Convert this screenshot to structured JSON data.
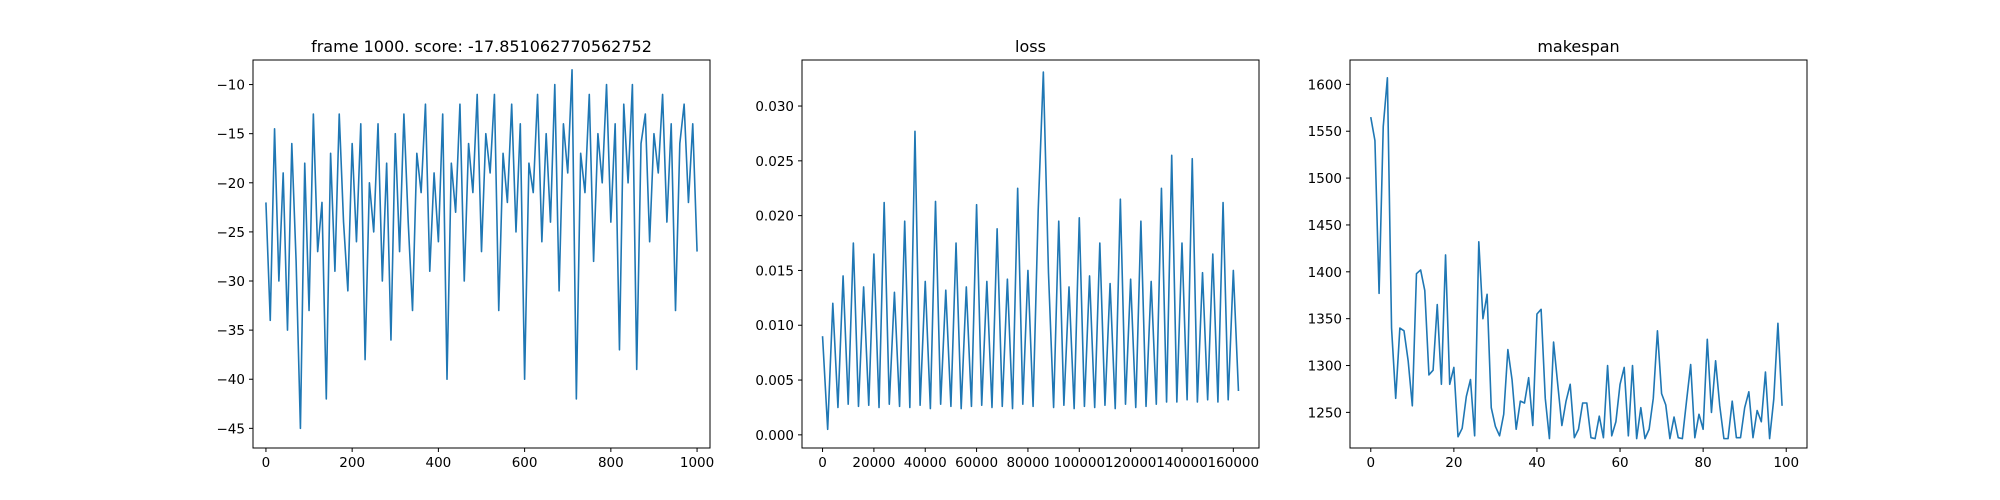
{
  "chart_data": [
    {
      "type": "line",
      "title": "frame 1000. score: -17.851062770562752",
      "xlabel": "",
      "ylabel": "",
      "xlim": [
        -30,
        1030
      ],
      "ylim": [
        -47,
        -7.5
      ],
      "xticks": [
        0,
        200,
        400,
        600,
        800,
        1000
      ],
      "xtick_labels": [
        "0",
        "200",
        "400",
        "600",
        "800",
        "1000"
      ],
      "yticks": [
        -45,
        -40,
        -35,
        -30,
        -25,
        -20,
        -15,
        -10
      ],
      "ytick_labels": [
        "−45",
        "−40",
        "−35",
        "−30",
        "−25",
        "−20",
        "−15",
        "−10"
      ],
      "color": "#1f77b4",
      "grid": false,
      "series": [
        {
          "x": [
            0,
            10,
            20,
            30,
            40,
            50,
            60,
            70,
            80,
            90,
            100,
            110,
            120,
            130,
            140,
            150,
            160,
            170,
            180,
            190,
            200,
            210,
            220,
            230,
            240,
            250,
            260,
            270,
            280,
            290,
            300,
            310,
            320,
            330,
            340,
            350,
            360,
            370,
            380,
            390,
            400,
            410,
            420,
            430,
            440,
            450,
            460,
            470,
            480,
            490,
            500,
            510,
            520,
            530,
            540,
            550,
            560,
            570,
            580,
            590,
            600,
            610,
            620,
            630,
            640,
            650,
            660,
            670,
            680,
            690,
            700,
            710,
            720,
            730,
            740,
            750,
            760,
            770,
            780,
            790,
            800,
            810,
            820,
            830,
            840,
            850,
            860,
            870,
            880,
            890,
            900,
            910,
            920,
            930,
            940,
            950,
            960,
            970,
            980,
            990,
            1000
          ],
          "values": [
            -22,
            -34,
            -14.5,
            -30,
            -19,
            -35,
            -16,
            -28,
            -45,
            -18,
            -33,
            -13,
            -27,
            -22,
            -42,
            -17,
            -29,
            -13,
            -24,
            -31,
            -16,
            -26,
            -14,
            -38,
            -20,
            -25,
            -14,
            -30,
            -18,
            -36,
            -15,
            -27,
            -13,
            -24,
            -33,
            -17,
            -21,
            -12,
            -29,
            -19,
            -26,
            -13,
            -40,
            -18,
            -23,
            -12,
            -30,
            -16,
            -21,
            -11,
            -27,
            -15,
            -19,
            -11,
            -33,
            -17,
            -22,
            -12,
            -25,
            -14,
            -40,
            -18,
            -21,
            -11,
            -26,
            -15,
            -24,
            -10,
            -31,
            -14,
            -19,
            -8.5,
            -42,
            -17,
            -21,
            -11,
            -28,
            -15,
            -20,
            -10,
            -24,
            -14,
            -37,
            -12,
            -20,
            -10,
            -39,
            -16,
            -13,
            -26,
            -15,
            -19,
            -11,
            -24,
            -14,
            -33,
            -16,
            -12,
            -22,
            -14,
            -27
          ]
        }
      ]
    },
    {
      "type": "line",
      "title": "loss",
      "xlabel": "",
      "ylabel": "",
      "xlim": [
        -8000,
        170000
      ],
      "ylim": [
        -0.0012,
        0.0342
      ],
      "xticks": [
        0,
        20000,
        40000,
        60000,
        80000,
        100000,
        120000,
        140000,
        160000
      ],
      "xtick_labels": [
        "0",
        "20000",
        "40000",
        "60000",
        "80000",
        "100000",
        "120000",
        "140000",
        "160000"
      ],
      "yticks": [
        0.0,
        0.005,
        0.01,
        0.015,
        0.02,
        0.025,
        0.03
      ],
      "ytick_labels": [
        "0.000",
        "0.005",
        "0.010",
        "0.015",
        "0.020",
        "0.025",
        "0.030"
      ],
      "color": "#1f77b4",
      "grid": false,
      "series": [
        {
          "x": [
            0,
            2000,
            4000,
            6000,
            8000,
            10000,
            12000,
            14000,
            16000,
            18000,
            20000,
            22000,
            24000,
            26000,
            28000,
            30000,
            32000,
            34000,
            36000,
            38000,
            40000,
            42000,
            44000,
            46000,
            48000,
            50000,
            52000,
            54000,
            56000,
            58000,
            60000,
            62000,
            64000,
            66000,
            68000,
            70000,
            72000,
            74000,
            76000,
            78000,
            80000,
            82000,
            84000,
            86000,
            88000,
            90000,
            92000,
            94000,
            96000,
            98000,
            100000,
            102000,
            104000,
            106000,
            108000,
            110000,
            112000,
            114000,
            116000,
            118000,
            120000,
            122000,
            124000,
            126000,
            128000,
            130000,
            132000,
            134000,
            136000,
            138000,
            140000,
            142000,
            144000,
            146000,
            148000,
            150000,
            152000,
            154000,
            156000,
            158000,
            160000,
            162000
          ],
          "values": [
            0.009,
            0.0005,
            0.012,
            0.0025,
            0.0145,
            0.0028,
            0.0175,
            0.0026,
            0.0135,
            0.0027,
            0.0165,
            0.0025,
            0.0212,
            0.0028,
            0.013,
            0.0026,
            0.0195,
            0.0025,
            0.0277,
            0.0027,
            0.014,
            0.0024,
            0.0213,
            0.0028,
            0.0132,
            0.0026,
            0.0175,
            0.0024,
            0.0135,
            0.0026,
            0.021,
            0.0027,
            0.014,
            0.0025,
            0.0188,
            0.0026,
            0.0142,
            0.0024,
            0.0225,
            0.0028,
            0.015,
            0.0026,
            0.0205,
            0.0331,
            0.0148,
            0.0025,
            0.0195,
            0.0027,
            0.0135,
            0.0024,
            0.0198,
            0.0026,
            0.0145,
            0.0025,
            0.0175,
            0.0027,
            0.0138,
            0.0024,
            0.0215,
            0.0028,
            0.0142,
            0.0025,
            0.0195,
            0.0026,
            0.014,
            0.0028,
            0.0225,
            0.003,
            0.0255,
            0.003,
            0.0175,
            0.0032,
            0.0252,
            0.003,
            0.0148,
            0.0032,
            0.0165,
            0.003,
            0.0212,
            0.0032,
            0.015,
            0.004
          ]
        }
      ]
    },
    {
      "type": "line",
      "title": "makespan",
      "xlabel": "",
      "ylabel": "",
      "xlim": [
        -5,
        105
      ],
      "ylim": [
        1212,
        1626
      ],
      "xticks": [
        0,
        20,
        40,
        60,
        80,
        100
      ],
      "xtick_labels": [
        "0",
        "20",
        "40",
        "60",
        "80",
        "100"
      ],
      "yticks": [
        1250,
        1300,
        1350,
        1400,
        1450,
        1500,
        1550,
        1600
      ],
      "ytick_labels": [
        "1250",
        "1300",
        "1350",
        "1400",
        "1450",
        "1500",
        "1550",
        "1600"
      ],
      "color": "#1f77b4",
      "grid": false,
      "series": [
        {
          "x": [
            0,
            1,
            2,
            3,
            4,
            5,
            6,
            7,
            8,
            9,
            10,
            11,
            12,
            13,
            14,
            15,
            16,
            17,
            18,
            19,
            20,
            21,
            22,
            23,
            24,
            25,
            26,
            27,
            28,
            29,
            30,
            31,
            32,
            33,
            34,
            35,
            36,
            37,
            38,
            39,
            40,
            41,
            42,
            43,
            44,
            45,
            46,
            47,
            48,
            49,
            50,
            51,
            52,
            53,
            54,
            55,
            56,
            57,
            58,
            59,
            60,
            61,
            62,
            63,
            64,
            65,
            66,
            67,
            68,
            69,
            70,
            71,
            72,
            73,
            74,
            75,
            76,
            77,
            78,
            79,
            80,
            81,
            82,
            83,
            84,
            85,
            86,
            87,
            88,
            89,
            90,
            91,
            92,
            93,
            94,
            95,
            96,
            97,
            98,
            99
          ],
          "values": [
            1565,
            1540,
            1377,
            1555,
            1607,
            1340,
            1265,
            1340,
            1337,
            1305,
            1257,
            1398,
            1402,
            1380,
            1290,
            1295,
            1365,
            1280,
            1418,
            1280,
            1298,
            1224,
            1233,
            1267,
            1285,
            1225,
            1432,
            1350,
            1376,
            1255,
            1235,
            1225,
            1248,
            1317,
            1285,
            1232,
            1262,
            1260,
            1287,
            1236,
            1355,
            1360,
            1265,
            1222,
            1325,
            1280,
            1236,
            1262,
            1280,
            1223,
            1232,
            1260,
            1260,
            1223,
            1222,
            1246,
            1223,
            1300,
            1225,
            1240,
            1280,
            1298,
            1225,
            1300,
            1222,
            1255,
            1222,
            1232,
            1265,
            1337,
            1270,
            1258,
            1222,
            1245,
            1223,
            1222,
            1262,
            1301,
            1223,
            1248,
            1232,
            1328,
            1250,
            1305,
            1257,
            1222,
            1222,
            1262,
            1223,
            1223,
            1255,
            1272,
            1223,
            1252,
            1240,
            1293,
            1222,
            1264,
            1345,
            1257
          ]
        }
      ]
    }
  ]
}
